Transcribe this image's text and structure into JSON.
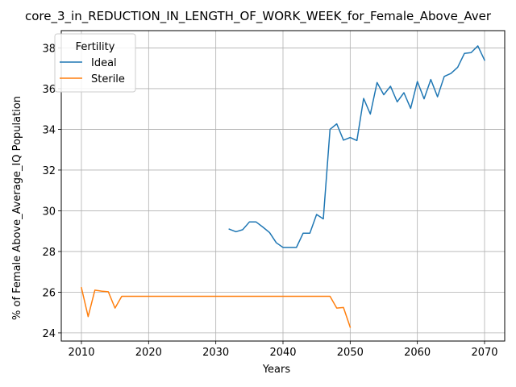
{
  "chart_data": {
    "type": "line",
    "title": "core_3_in_REDUCTION_IN_LENGTH_OF_WORK_WEEK_for_Female_Above_Aver",
    "xlabel": "Years",
    "ylabel": "% of Female Above_Average_IQ Population",
    "xlim": [
      2007,
      2073
    ],
    "ylim": [
      23.6,
      38.85
    ],
    "xticks": [
      2010,
      2020,
      2030,
      2040,
      2050,
      2060,
      2070
    ],
    "yticks": [
      24,
      26,
      28,
      30,
      32,
      34,
      36,
      38
    ],
    "grid": true,
    "legend": {
      "title": "Fertility",
      "placement": "top-left"
    },
    "series": [
      {
        "name": "Ideal",
        "color": "#1f77b4",
        "x": [
          2032,
          2033,
          2034,
          2035,
          2036,
          2037,
          2038,
          2039,
          2040,
          2041,
          2042,
          2043,
          2044,
          2045,
          2046,
          2047,
          2048,
          2049,
          2050,
          2051,
          2052,
          2053,
          2054,
          2055,
          2056,
          2057,
          2058,
          2059,
          2060,
          2061,
          2062,
          2063,
          2064,
          2065,
          2066,
          2067,
          2068,
          2069,
          2070
        ],
        "y": [
          29.1,
          28.97,
          29.07,
          29.45,
          29.45,
          29.2,
          28.93,
          28.43,
          28.2,
          28.2,
          28.2,
          28.9,
          28.9,
          29.82,
          29.6,
          34.0,
          34.27,
          33.47,
          33.6,
          33.45,
          35.52,
          34.75,
          36.3,
          35.7,
          36.12,
          35.35,
          35.8,
          35.03,
          36.35,
          35.5,
          36.45,
          35.6,
          36.6,
          36.75,
          37.05,
          37.73,
          37.77,
          38.1,
          37.4
        ]
      },
      {
        "name": "Sterile",
        "color": "#ff7f0e",
        "x": [
          2010,
          2011,
          2012,
          2013,
          2014,
          2015,
          2016,
          2017,
          2018,
          2019,
          2020,
          2021,
          2022,
          2023,
          2024,
          2025,
          2026,
          2027,
          2028,
          2029,
          2030,
          2031,
          2032,
          2033,
          2034,
          2035,
          2036,
          2037,
          2038,
          2039,
          2040,
          2041,
          2042,
          2043,
          2044,
          2045,
          2046,
          2047,
          2048,
          2049,
          2050
        ],
        "y": [
          26.22,
          24.8,
          26.1,
          26.05,
          26.02,
          25.22,
          25.8,
          25.8,
          25.8,
          25.8,
          25.8,
          25.8,
          25.8,
          25.8,
          25.8,
          25.8,
          25.8,
          25.8,
          25.8,
          25.8,
          25.8,
          25.8,
          25.8,
          25.8,
          25.8,
          25.8,
          25.8,
          25.8,
          25.8,
          25.8,
          25.8,
          25.8,
          25.8,
          25.8,
          25.8,
          25.8,
          25.8,
          25.8,
          25.22,
          25.25,
          24.28
        ]
      }
    ]
  }
}
